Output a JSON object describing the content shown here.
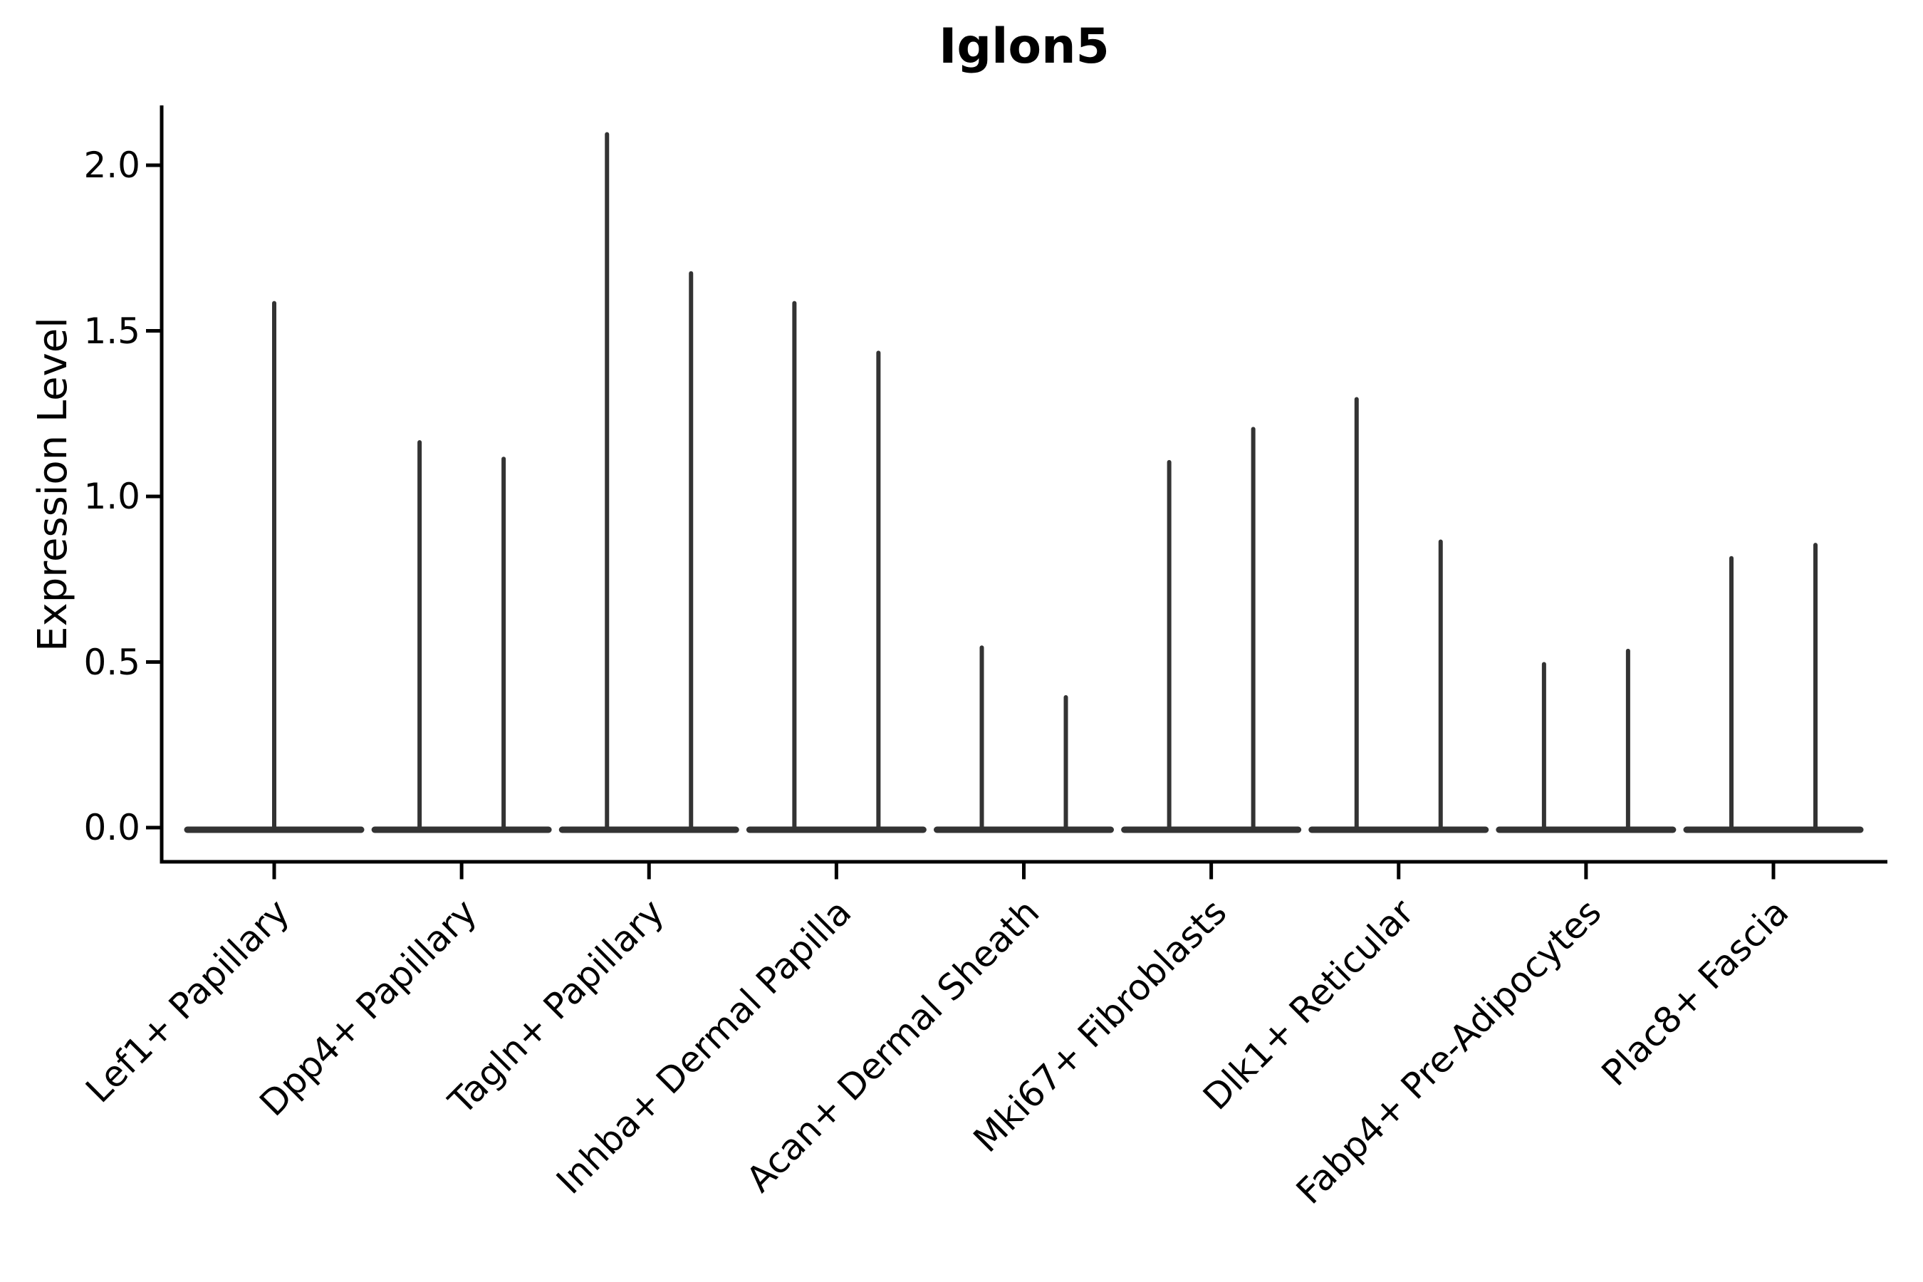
{
  "title": "Iglon5",
  "colors": {
    "background": "#ffffff",
    "axis": "#000000",
    "text": "#000000",
    "violin": "#333333"
  },
  "chart_data": {
    "type": "violin",
    "title": "Iglon5",
    "xlabel": "",
    "ylabel": "Expression Level",
    "yticks": [
      0.0,
      0.5,
      1.0,
      1.5,
      2.0
    ],
    "ylim": [
      -0.1,
      2.18
    ],
    "grid": false,
    "legend": "none",
    "categories": [
      "Lef1+ Papillary",
      "Dpp4+ Papillary",
      "Tagln+ Papillary",
      "Inhba+ Dermal Papilla",
      "Acan+ Dermal Sheath",
      "Mki67+ Fibroblasts",
      "Dlk1+ Reticular",
      "Fabp4+ Pre-Adipocytes",
      "Plac8+ Fascia"
    ],
    "description": "Needle-shaped violins: most cells at expression 0 (wide flat base), thin spike up to the max expression. First category shows one centered violin; the rest show two adjacent narrow violins.",
    "violin_max_per_category": [
      [
        1.59
      ],
      [
        1.17,
        1.12
      ],
      [
        2.1,
        1.68
      ],
      [
        1.59,
        1.44
      ],
      [
        0.55,
        0.4
      ],
      [
        1.11,
        1.21
      ],
      [
        1.3,
        0.87
      ],
      [
        0.5,
        0.54
      ],
      [
        0.82,
        0.86
      ]
    ]
  }
}
